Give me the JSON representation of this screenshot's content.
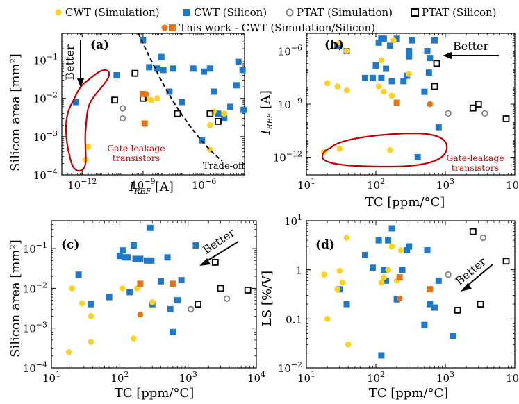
{
  "colors": {
    "cwt_sim": "#FFD21F",
    "cwt_si": "#1F78C8",
    "ptat_sim": "#808080",
    "ptat_si": "#000000",
    "this_work": "#E2761B",
    "annotation": "#C00000"
  },
  "legend": {
    "cwt_sim": "CWT (Simulation)",
    "cwt_si": "CWT (Silicon)",
    "ptat_sim": "PTAT (Simulation)",
    "ptat_si": "PTAT (Silicon)",
    "this_work": "This work - CWT (Simulation/Silicon)"
  },
  "chart_data": [
    {
      "type": "scatter",
      "panel": "(a)",
      "xlabel_main": "I",
      "xlabel_sub": "REF",
      "xlabel_unit": " [A]",
      "ylabel": "Silicon area [mm²]",
      "xscale": "log",
      "yscale": "log",
      "xlim": [
        1e-13,
        0.0001
      ],
      "ylim": [
        0.0001,
        0.5
      ],
      "xticks": [
        {
          "v": 1e-12,
          "b": "10",
          "e": "−12"
        },
        {
          "v": 1e-09,
          "b": "10",
          "e": "−9"
        },
        {
          "v": 1e-06,
          "b": "10",
          "e": "−6"
        }
      ],
      "yticks": [
        {
          "v": 0.0001,
          "b": "10",
          "e": "−4"
        },
        {
          "v": 0.001,
          "b": "10",
          "e": "−3"
        },
        {
          "v": 0.01,
          "b": "10",
          "e": "−2"
        },
        {
          "v": 0.1,
          "b": "10",
          "e": "−1"
        }
      ],
      "series": {
        "cwt_sim": [
          [
            1.5e-12,
            0.00025
          ],
          [
            2e-12,
            0.00055
          ],
          [
            1.5e-09,
            0.01
          ],
          [
            5e-09,
            0.01
          ],
          [
            2.5e-09,
            0.009
          ],
          [
            2e-06,
            0.002
          ],
          [
            3e-06,
            0.0045
          ],
          [
            1e-05,
            0.004
          ],
          [
            2e-06,
            0.00045
          ]
        ],
        "cwt_si": [
          [
            5e-13,
            0.008
          ],
          [
            5e-11,
            0.04
          ],
          [
            1e-09,
            0.33
          ],
          [
            2e-09,
            0.065
          ],
          [
            5e-09,
            0.06
          ],
          [
            8e-09,
            0.12
          ],
          [
            1e-08,
            0.055
          ],
          [
            2e-08,
            0.015
          ],
          [
            3e-08,
            0.06
          ],
          [
            8e-08,
            0.008
          ],
          [
            3e-07,
            0.06
          ],
          [
            1e-06,
            0.05
          ],
          [
            2e-06,
            0.06
          ],
          [
            8e-07,
            0.0008
          ],
          [
            3e-06,
            0.015
          ],
          [
            5e-06,
            0.004
          ],
          [
            1e-05,
            0.003
          ],
          [
            2e-05,
            0.006
          ],
          [
            5e-05,
            0.09
          ],
          [
            4e-05,
            0.022
          ],
          [
            8e-05,
            0.055
          ],
          [
            9e-05,
            0.005
          ]
        ],
        "ptat_sim": [
          [
            1e-10,
            0.0055
          ],
          [
            1e-10,
            0.003
          ]
        ],
        "ptat_si": [
          [
            4e-11,
            0.009
          ],
          [
            4e-10,
            0.045
          ],
          [
            1e-09,
            0.01
          ],
          [
            5e-08,
            0.004
          ],
          [
            2e-06,
            0.004
          ],
          [
            5e-06,
            0.0025
          ]
        ],
        "this_work": [
          [
            1e-09,
            0.013
          ],
          [
            1.4e-09,
            0.013
          ],
          [
            1.2e-09,
            0.0022
          ]
        ]
      },
      "annotations": {
        "better": "Better",
        "tradeoff": "Trade-off",
        "gate_line1": "Gate-leakage",
        "gate_line2": "transistors"
      }
    },
    {
      "type": "scatter",
      "panel": "(b)",
      "xlabel": "TC [ppm/°C]",
      "ylabel_main": "I",
      "ylabel_sub": "REF",
      "ylabel_unit": " [A]",
      "xscale": "log",
      "yscale": "log",
      "xlim": [
        10,
        10000
      ],
      "ylim": [
        1e-13,
        1e-05
      ],
      "xticks": [
        {
          "v": 10,
          "b": "10",
          "e": "1"
        },
        {
          "v": 100,
          "b": "10",
          "e": "2"
        },
        {
          "v": 1000,
          "b": "10",
          "e": "3"
        },
        {
          "v": 10000,
          "b": "10",
          "e": "4"
        }
      ],
      "yticks": [
        {
          "v": 1e-12,
          "b": "10",
          "e": "−12"
        },
        {
          "v": 1e-09,
          "b": "10",
          "e": "−9"
        },
        {
          "v": 1e-06,
          "b": "10",
          "e": "−6"
        }
      ],
      "series": {
        "cwt_sim": [
          [
            18,
            2e-12
          ],
          [
            30,
            3e-12
          ],
          [
            160,
            2.5e-12
          ],
          [
            20,
            1.5e-08
          ],
          [
            38,
            6e-09
          ],
          [
            28,
            1e-08
          ],
          [
            38,
            1e-06
          ],
          [
            120,
            3e-07
          ],
          [
            110,
            1e-08
          ],
          [
            130,
            5e-09
          ],
          [
            170,
            3e-09
          ],
          [
            200,
            1.2e-09
          ],
          [
            300,
            5e-08
          ],
          [
            30,
            3e-06
          ],
          [
            180,
            4e-06
          ]
        ],
        "cwt_si": [
          [
            28,
            2e-06
          ],
          [
            38,
            1e-06
          ],
          [
            70,
            3e-08
          ],
          [
            90,
            3e-08
          ],
          [
            100,
            1.5e-07
          ],
          [
            110,
            3e-06
          ],
          [
            120,
            3e-08
          ],
          [
            120,
            5e-06
          ],
          [
            130,
            5e-06
          ],
          [
            140,
            1e-07
          ],
          [
            160,
            2e-06
          ],
          [
            170,
            2e-08
          ],
          [
            200,
            5e-06
          ],
          [
            250,
            2e-08
          ],
          [
            280,
            4e-08
          ],
          [
            300,
            1e-06
          ],
          [
            300,
            5e-07
          ],
          [
            330,
            4e-06
          ],
          [
            500,
            5e-09
          ],
          [
            550,
            1e-06
          ],
          [
            580,
            6e-08
          ],
          [
            600,
            4e-07
          ],
          [
            700,
            4e-06
          ],
          [
            400,
            1e-12
          ],
          [
            800,
            5e-11
          ]
        ],
        "ptat_sim": [
          [
            1100,
            3e-10
          ],
          [
            3700,
            3e-10
          ]
        ],
        "ptat_si": [
          [
            700,
            1e-08
          ],
          [
            750,
            2e-07
          ],
          [
            2500,
            6e-10
          ],
          [
            3000,
            1e-09
          ],
          [
            7500,
            1.5e-10
          ]
        ],
        "this_work": [
          [
            200,
            1.2e-09
          ],
          [
            600,
            1e-09
          ]
        ]
      },
      "annotations": {
        "better": "Better",
        "gate_line1": "Gate-leakage",
        "gate_line2": "transistors"
      }
    },
    {
      "type": "scatter",
      "panel": "(c)",
      "xlabel": "TC [ppm/°C]",
      "ylabel": "Silicon area [mm²]",
      "xscale": "log",
      "yscale": "log",
      "xlim": [
        10,
        10000
      ],
      "ylim": [
        0.0001,
        0.5
      ],
      "xticks": [
        {
          "v": 10,
          "b": "10",
          "e": "1"
        },
        {
          "v": 100,
          "b": "10",
          "e": "2"
        },
        {
          "v": 1000,
          "b": "10",
          "e": "3"
        },
        {
          "v": 10000,
          "b": "10",
          "e": "4"
        }
      ],
      "yticks": [
        {
          "v": 0.0001,
          "b": "10",
          "e": "−4"
        },
        {
          "v": 0.001,
          "b": "10",
          "e": "−3"
        },
        {
          "v": 0.01,
          "b": "10",
          "e": "−2"
        },
        {
          "v": 0.1,
          "b": "10",
          "e": "−1"
        }
      ],
      "series": {
        "cwt_sim": [
          [
            18,
            0.00025
          ],
          [
            20,
            0.01
          ],
          [
            28,
            0.0042
          ],
          [
            38,
            0.002
          ],
          [
            38,
            0.00045
          ],
          [
            110,
            0.01
          ],
          [
            160,
            0.00055
          ],
          [
            180,
            0.01
          ],
          [
            300,
            0.0045
          ]
        ],
        "cwt_si": [
          [
            25,
            0.022
          ],
          [
            38,
            0.004
          ],
          [
            70,
            0.006
          ],
          [
            100,
            0.065
          ],
          [
            110,
            0.09
          ],
          [
            120,
            0.06
          ],
          [
            130,
            0.06
          ],
          [
            140,
            0.008
          ],
          [
            160,
            0.12
          ],
          [
            170,
            0.055
          ],
          [
            200,
            0.055
          ],
          [
            250,
            0.05
          ],
          [
            280,
            0.33
          ],
          [
            290,
            0.05
          ],
          [
            300,
            0.004
          ],
          [
            400,
            0.015
          ],
          [
            500,
            0.06
          ],
          [
            550,
            0.003
          ],
          [
            600,
            0.0008
          ],
          [
            700,
            0.005
          ],
          [
            800,
            0.016
          ],
          [
            1300,
            0.12
          ]
        ],
        "ptat_sim": [
          [
            1100,
            0.003
          ],
          [
            3700,
            0.0055
          ]
        ],
        "ptat_si": [
          [
            1400,
            0.004
          ],
          [
            2500,
            0.045
          ],
          [
            3000,
            0.01
          ],
          [
            7500,
            0.009
          ]
        ],
        "this_work": [
          [
            200,
            0.013
          ],
          [
            200,
            0.0022
          ],
          [
            600,
            0.013
          ]
        ]
      },
      "annotations": {
        "better": "Better"
      }
    },
    {
      "type": "scatter",
      "panel": "(d)",
      "xlabel": "TC [ppm/°C]",
      "ylabel": "LS [%/V]",
      "xscale": "log",
      "yscale": "log",
      "xlim": [
        10,
        10000
      ],
      "ylim": [
        0.01,
        10
      ],
      "xticks": [
        {
          "v": 10,
          "b": "10",
          "e": "1"
        },
        {
          "v": 100,
          "b": "10",
          "e": "2"
        },
        {
          "v": 1000,
          "b": "10",
          "e": "3"
        },
        {
          "v": 10000,
          "b": "10",
          "e": "4"
        }
      ],
      "yticks": [
        {
          "v": 0.01,
          "b": "10",
          "e": "−2"
        },
        {
          "v": 0.1,
          "b": "0.1",
          "e": ""
        },
        {
          "v": 1,
          "b": "1",
          "e": ""
        },
        {
          "v": 10,
          "b": "10",
          "e": "1"
        }
      ],
      "series": {
        "cwt_sim": [
          [
            18,
            0.8
          ],
          [
            20,
            0.1
          ],
          [
            28,
            0.4
          ],
          [
            30,
            0.95
          ],
          [
            33,
            0.55
          ],
          [
            38,
            4.5
          ],
          [
            40,
            0.03
          ],
          [
            120,
            0.55
          ],
          [
            130,
            0.7
          ],
          [
            150,
            1
          ],
          [
            170,
            3
          ],
          [
            200,
            0.6
          ],
          [
            230,
            2.5
          ]
        ],
        "cwt_si": [
          [
            30,
            0.4
          ],
          [
            38,
            0.2
          ],
          [
            70,
            2
          ],
          [
            90,
            1.1
          ],
          [
            110,
            4
          ],
          [
            120,
            0.018
          ],
          [
            130,
            1
          ],
          [
            140,
            0.6
          ],
          [
            150,
            4
          ],
          [
            170,
            7
          ],
          [
            200,
            0.25
          ],
          [
            240,
            1
          ],
          [
            280,
            2.5
          ],
          [
            300,
            3
          ],
          [
            500,
            0.075
          ],
          [
            550,
            2.5
          ],
          [
            600,
            0.2
          ],
          [
            700,
            0.17
          ],
          [
            800,
            0.6
          ],
          [
            1300,
            0.045
          ]
        ],
        "ptat_sim": [
          [
            1100,
            0.8
          ],
          [
            3500,
            4.5
          ]
        ],
        "ptat_si": [
          [
            1500,
            0.15
          ],
          [
            2500,
            6
          ],
          [
            3200,
            0.2
          ],
          [
            7500,
            1.5
          ]
        ],
        "this_work": [
          [
            220,
            0.7
          ],
          [
            220,
            0.26
          ],
          [
            600,
            0.4
          ]
        ]
      },
      "annotations": {
        "better": "Better"
      }
    }
  ]
}
